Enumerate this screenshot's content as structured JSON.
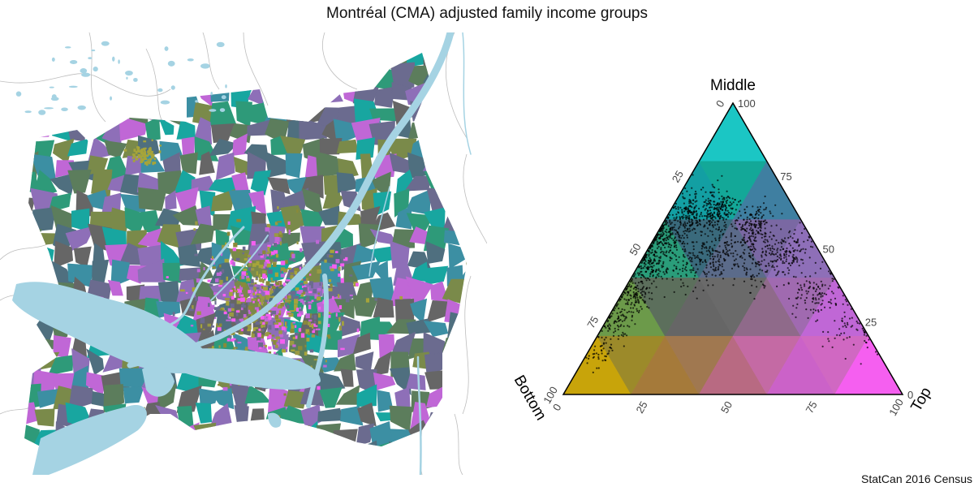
{
  "title": "Montréal (CMA) adjusted family income groups",
  "source": "StatCan 2016 Census",
  "colors": {
    "water": "#a5d3e3",
    "roads": "#bdbdbd",
    "bottom_corner": "#c8a40a",
    "middle_corner": "#1bc6c4",
    "top_corner": "#f55ff0",
    "center": "#666666",
    "points": "#000000"
  },
  "map": {
    "region_palette": [
      "#2e9a79",
      "#5c7d5c",
      "#6b6b8f",
      "#8e6fb8",
      "#3c8fa3",
      "#666666",
      "#18a6a0",
      "#c067d6",
      "#7a8a4a",
      "#4f6f7f"
    ]
  },
  "chart_data": {
    "type": "ternary-scatter",
    "axes": [
      {
        "name": "Middle",
        "ticks": [
          "0",
          "25",
          "50",
          "75",
          "100"
        ]
      },
      {
        "name": "Bottom",
        "ticks": [
          "0",
          "25",
          "50",
          "75",
          "100"
        ]
      },
      {
        "name": "Top",
        "ticks": [
          "0",
          "25",
          "50",
          "75",
          "100"
        ]
      }
    ],
    "range": [
      0,
      100
    ],
    "grid": false,
    "background_regions": [
      {
        "fill": "#1bc6c4"
      },
      {
        "fill": "#139fa3"
      },
      {
        "fill": "#13a898"
      },
      {
        "fill": "#3f7fa1"
      },
      {
        "fill": "#2a9d7a"
      },
      {
        "fill": "#3a6a7c"
      },
      {
        "fill": "#5b6b8a"
      },
      {
        "fill": "#7a68a3"
      },
      {
        "fill": "#8e6fb8"
      },
      {
        "fill": "#6c9a4a"
      },
      {
        "fill": "#5c6f5c"
      },
      {
        "fill": "#666666"
      },
      {
        "fill": "#6a6a6a"
      },
      {
        "fill": "#8f6a8a"
      },
      {
        "fill": "#a06ab0"
      },
      {
        "fill": "#c067d6"
      },
      {
        "fill": "#c8a40a"
      },
      {
        "fill": "#9c8a2a"
      },
      {
        "fill": "#a57a3a"
      },
      {
        "fill": "#a07850"
      },
      {
        "fill": "#b86a82"
      },
      {
        "fill": "#c46aa4"
      },
      {
        "fill": "#cb62c8"
      },
      {
        "fill": "#d068c2"
      },
      {
        "fill": "#f55ff0"
      }
    ],
    "point_clusters": [
      {
        "bottom": 52,
        "middle": 45,
        "top": 3,
        "spread": 4,
        "count": 180
      },
      {
        "bottom": 42,
        "middle": 55,
        "top": 3,
        "spread": 4,
        "count": 160
      },
      {
        "bottom": 32,
        "middle": 62,
        "top": 6,
        "spread": 4,
        "count": 180
      },
      {
        "bottom": 22,
        "middle": 64,
        "top": 14,
        "spread": 4,
        "count": 190
      },
      {
        "bottom": 15,
        "middle": 58,
        "top": 27,
        "spread": 5,
        "count": 180
      },
      {
        "bottom": 10,
        "middle": 48,
        "top": 42,
        "spread": 5,
        "count": 150
      },
      {
        "bottom": 7,
        "middle": 35,
        "top": 58,
        "spread": 5,
        "count": 110
      },
      {
        "bottom": 5,
        "middle": 22,
        "top": 73,
        "spread": 5,
        "count": 60
      },
      {
        "bottom": 62,
        "middle": 34,
        "top": 4,
        "spread": 4,
        "count": 130
      },
      {
        "bottom": 72,
        "middle": 24,
        "top": 4,
        "spread": 4,
        "count": 80
      },
      {
        "bottom": 82,
        "middle": 14,
        "top": 4,
        "spread": 3,
        "count": 40
      },
      {
        "bottom": 30,
        "middle": 50,
        "top": 20,
        "spread": 6,
        "count": 160
      },
      {
        "bottom": 40,
        "middle": 45,
        "top": 15,
        "spread": 6,
        "count": 120
      },
      {
        "bottom": 22,
        "middle": 45,
        "top": 33,
        "spread": 6,
        "count": 110
      }
    ]
  }
}
